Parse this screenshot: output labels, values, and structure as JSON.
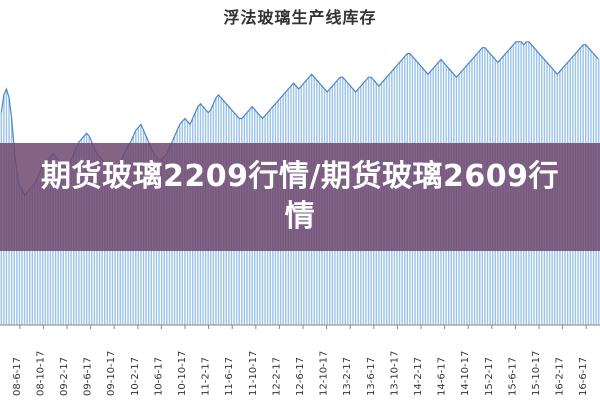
{
  "banner": {
    "headline": "期货玻璃2209行情/期货玻璃2609行情"
  },
  "colors": {
    "bar": "#9cc3e8",
    "bar_edge": "#6fa3d6",
    "line": "#4d86c6",
    "axis": "#888888",
    "banner_bg": "#6e486e"
  },
  "chart_data": {
    "type": "bar",
    "title": "浮法玻璃生产线库存",
    "xlabel": "",
    "ylabel": "",
    "ylim": [
      0,
      100
    ],
    "grid": false,
    "x_tick_labels": [
      "08-6-17",
      "08-10-17",
      "09-2-17",
      "09-6-17",
      "09-10-17",
      "10-2-17",
      "10-6-17",
      "10-10-17",
      "11-2-17",
      "11-6-17",
      "11-10-17",
      "12-2-17",
      "12-6-17",
      "12-10-17",
      "13-2-17",
      "13-6-17",
      "13-10-17",
      "14-2-17",
      "14-6-17",
      "14-10-17",
      "15-2-17",
      "15-6-17",
      "15-10-17",
      "16-2-17",
      "16-6-17"
    ],
    "series": [
      {
        "values": [
          72,
          78,
          80,
          77,
          70,
          60,
          52,
          47,
          46,
          44,
          45,
          46,
          47,
          48,
          50,
          52,
          54,
          55,
          56,
          57,
          58,
          57,
          56,
          55,
          54,
          53,
          54,
          56,
          58,
          60,
          62,
          63,
          64,
          65,
          64,
          62,
          60,
          58,
          57,
          56,
          55,
          54,
          53,
          52,
          52,
          53,
          55,
          57,
          59,
          61,
          62,
          64,
          66,
          67,
          68,
          66,
          64,
          62,
          60,
          58,
          57,
          56,
          56,
          57,
          58,
          60,
          62,
          64,
          66,
          68,
          69,
          70,
          69,
          68,
          70,
          72,
          74,
          75,
          74,
          73,
          72,
          73,
          75,
          77,
          78,
          77,
          76,
          75,
          74,
          73,
          72,
          71,
          70,
          70,
          71,
          72,
          73,
          74,
          73,
          72,
          71,
          70,
          71,
          72,
          73,
          74,
          75,
          76,
          77,
          78,
          79,
          80,
          81,
          82,
          81,
          80,
          81,
          82,
          83,
          84,
          85,
          84,
          83,
          82,
          81,
          80,
          79,
          80,
          81,
          82,
          83,
          84,
          84,
          83,
          82,
          81,
          80,
          79,
          80,
          81,
          82,
          83,
          84,
          84,
          83,
          82,
          81,
          82,
          83,
          84,
          85,
          86,
          87,
          88,
          89,
          90,
          91,
          92,
          92,
          91,
          90,
          89,
          88,
          87,
          86,
          85,
          86,
          87,
          88,
          89,
          90,
          89,
          88,
          87,
          86,
          85,
          84,
          85,
          86,
          87,
          88,
          89,
          90,
          91,
          92,
          93,
          94,
          94,
          93,
          92,
          91,
          90,
          89,
          90,
          91,
          92,
          93,
          94,
          95,
          96,
          96,
          96,
          95,
          96,
          96,
          95,
          94,
          93,
          92,
          91,
          90,
          89,
          88,
          87,
          86,
          85,
          86,
          87,
          88,
          89,
          90,
          91,
          92,
          93,
          94,
          95,
          95,
          94,
          93,
          92,
          91,
          90
        ]
      }
    ]
  }
}
